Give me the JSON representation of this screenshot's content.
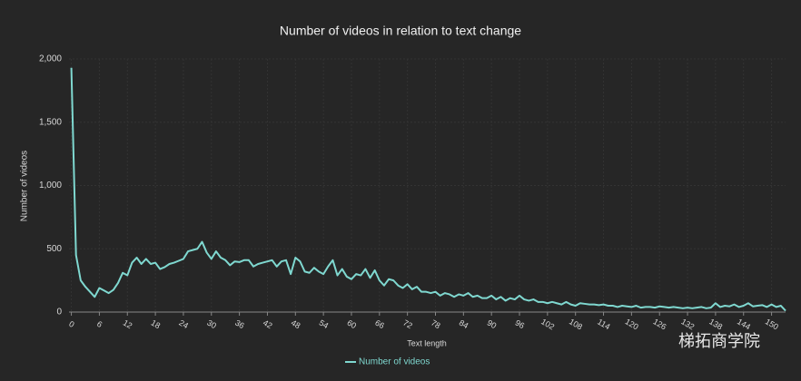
{
  "chart_data": {
    "type": "line",
    "title": "Number of videos in relation to text change",
    "xlabel": "Text length",
    "ylabel": "Number of videos",
    "watermark": "梯拓商学院",
    "x": [
      0,
      1,
      2,
      3,
      4,
      5,
      6,
      7,
      8,
      9,
      10,
      11,
      12,
      13,
      14,
      15,
      16,
      17,
      18,
      19,
      20,
      21,
      22,
      23,
      24,
      25,
      26,
      27,
      28,
      29,
      30,
      31,
      32,
      33,
      34,
      35,
      36,
      37,
      38,
      39,
      40,
      41,
      42,
      43,
      44,
      45,
      46,
      47,
      48,
      49,
      50,
      51,
      52,
      53,
      54,
      55,
      56,
      57,
      58,
      59,
      60,
      61,
      62,
      63,
      64,
      65,
      66,
      67,
      68,
      69,
      70,
      71,
      72,
      73,
      74,
      75,
      76,
      77,
      78,
      79,
      80,
      81,
      82,
      83,
      84,
      85,
      86,
      87,
      88,
      89,
      90,
      91,
      92,
      93,
      94,
      95,
      96,
      97,
      98,
      99,
      100,
      101,
      102,
      103,
      104,
      105,
      106,
      107,
      108,
      109,
      110,
      111,
      112,
      113,
      114,
      115,
      116,
      117,
      118,
      119,
      120,
      121,
      122,
      123,
      124,
      125,
      126,
      127,
      128,
      129,
      130,
      131,
      132,
      133,
      134,
      135,
      136,
      137,
      138,
      139,
      140,
      141,
      142,
      143,
      144,
      145,
      146,
      147,
      148,
      149,
      150,
      151,
      152,
      153
    ],
    "series": [
      {
        "name": "Number of videos",
        "color": "#7fd8d0",
        "values": [
          1930,
          450,
          250,
          200,
          160,
          120,
          190,
          170,
          150,
          175,
          230,
          310,
          290,
          390,
          430,
          380,
          420,
          380,
          390,
          340,
          355,
          380,
          390,
          405,
          420,
          480,
          490,
          500,
          555,
          470,
          420,
          480,
          430,
          410,
          370,
          400,
          395,
          410,
          410,
          360,
          380,
          390,
          400,
          410,
          360,
          400,
          410,
          300,
          430,
          400,
          320,
          310,
          350,
          320,
          300,
          360,
          410,
          290,
          340,
          280,
          260,
          300,
          290,
          340,
          270,
          330,
          250,
          210,
          260,
          250,
          210,
          190,
          220,
          180,
          200,
          160,
          160,
          150,
          160,
          130,
          150,
          140,
          120,
          140,
          130,
          150,
          120,
          130,
          110,
          110,
          130,
          100,
          120,
          90,
          110,
          100,
          130,
          100,
          90,
          100,
          80,
          80,
          70,
          80,
          70,
          60,
          80,
          60,
          50,
          70,
          65,
          60,
          60,
          55,
          60,
          50,
          50,
          40,
          50,
          45,
          40,
          50,
          35,
          40,
          40,
          35,
          45,
          40,
          35,
          40,
          35,
          30,
          35,
          30,
          35,
          40,
          30,
          35,
          70,
          40,
          50,
          45,
          60,
          40,
          50,
          70,
          45,
          50,
          55,
          40,
          60,
          40,
          50,
          10
        ]
      }
    ],
    "xlim": [
      -0.5,
      153
    ],
    "ylim": [
      0,
      2000
    ],
    "xticks": [
      0,
      6,
      12,
      18,
      24,
      30,
      36,
      42,
      48,
      54,
      60,
      66,
      72,
      78,
      84,
      90,
      96,
      102,
      108,
      114,
      120,
      126,
      132,
      138,
      144,
      150
    ],
    "yticks": [
      0,
      500,
      {
        "value": 1000,
        "label": "1,000"
      },
      {
        "value": 1500,
        "label": "1,500"
      },
      {
        "value": 2000,
        "label": "2,000"
      }
    ],
    "grid": true
  }
}
